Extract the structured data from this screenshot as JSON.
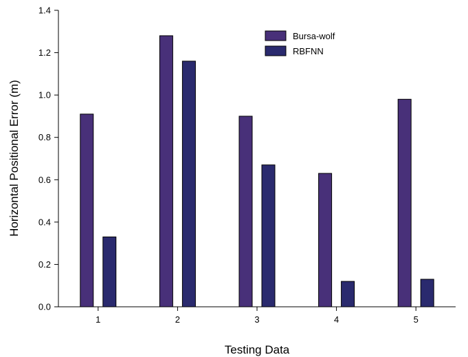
{
  "chart_data": {
    "type": "bar",
    "xlabel": "Testing Data",
    "ylabel": "Horizontal Positional Error (m)",
    "categories": [
      "1",
      "2",
      "3",
      "4",
      "5"
    ],
    "series": [
      {
        "name": "Bursa-wolf",
        "values": [
          0.91,
          1.28,
          0.9,
          0.63,
          0.98
        ],
        "color": "#483079"
      },
      {
        "name": "RBFNN",
        "values": [
          0.33,
          1.16,
          0.67,
          0.12,
          0.13
        ],
        "color": "#2a2a6e"
      }
    ],
    "ylim": [
      0,
      1.4
    ],
    "yticks": [
      "0.0",
      "0.2",
      "0.4",
      "0.6",
      "0.8",
      "1.0",
      "1.2",
      "1.4"
    ],
    "grid": false,
    "legend_position": "top-right"
  }
}
